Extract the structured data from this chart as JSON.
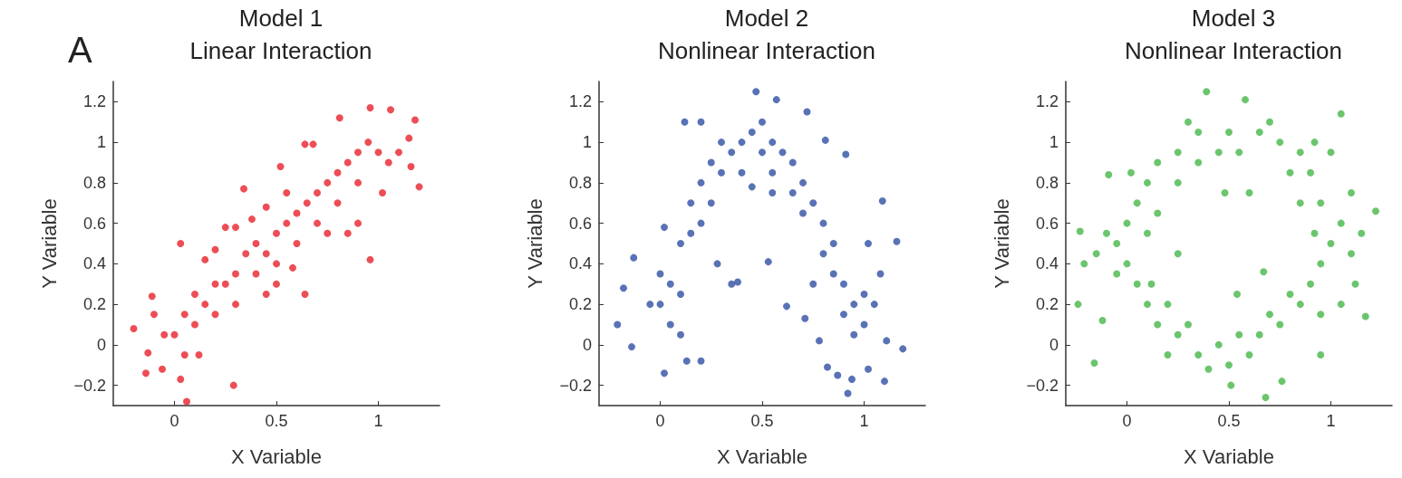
{
  "chart_data": [
    {
      "type": "scatter",
      "title": "Model 1",
      "subtitle": "Linear Interaction",
      "xlabel": "X Variable",
      "ylabel": "Y Variable",
      "annotations": [
        "A"
      ],
      "xlim": [
        -0.3,
        1.3
      ],
      "ylim": [
        -0.3,
        1.3
      ],
      "xticks": [
        0,
        0.5,
        1
      ],
      "yticks": [
        -0.2,
        0,
        0.2,
        0.4,
        0.6,
        0.8,
        1,
        1.2
      ],
      "grid": false,
      "marker": "circle",
      "series": [
        {
          "color": "#e8202a",
          "x": [
            -0.2,
            -0.14,
            -0.13,
            -0.11,
            0.03,
            0.06,
            0.29,
            0.34,
            0.52,
            0.64,
            0.96,
            1.2,
            1.18,
            1.06,
            0.96,
            0.81,
            1.15,
            1.16,
            0.64,
            0.68,
            0.03,
            -0.06,
            0,
            0.05,
            0.1,
            0.1,
            0.15,
            0.2,
            0.2,
            0.25,
            0.3,
            0.3,
            0.35,
            0.4,
            0.4,
            0.45,
            0.5,
            0.5,
            0.55,
            0.6,
            0.6,
            0.65,
            0.7,
            0.7,
            0.75,
            0.8,
            0.8,
            0.85,
            0.9,
            0.9,
            0.95,
            1,
            1.05,
            0.15,
            0.2,
            0.25,
            0.38,
            0.45,
            0.5,
            0.58,
            0.12,
            0.05,
            -0.1,
            -0.05,
            0.75,
            0.85,
            0.9,
            1.02,
            1.1,
            0.55,
            0.45,
            0.3
          ],
          "values": [
            0.08,
            -0.14,
            -0.04,
            0.24,
            0.5,
            -0.28,
            -0.2,
            0.77,
            0.88,
            0.25,
            0.42,
            0.78,
            1.11,
            1.16,
            1.17,
            1.12,
            1.02,
            0.88,
            0.99,
            0.99,
            -0.17,
            -0.12,
            0.05,
            0.15,
            0.1,
            0.25,
            0.2,
            0.3,
            0.15,
            0.3,
            0.35,
            0.2,
            0.45,
            0.5,
            0.35,
            0.45,
            0.55,
            0.4,
            0.6,
            0.65,
            0.5,
            0.7,
            0.75,
            0.6,
            0.8,
            0.85,
            0.7,
            0.9,
            0.95,
            0.8,
            1,
            0.95,
            0.9,
            0.42,
            0.47,
            0.58,
            0.62,
            0.25,
            0.3,
            0.38,
            -0.05,
            -0.05,
            0.15,
            0.05,
            0.55,
            0.55,
            0.6,
            0.75,
            0.95,
            0.75,
            0.68,
            0.58
          ]
        }
      ]
    },
    {
      "type": "scatter",
      "title": "Model 2",
      "subtitle": "Nonlinear Interaction",
      "xlabel": "X Variable",
      "ylabel": "Y Variable",
      "xlim": [
        -0.3,
        1.3
      ],
      "ylim": [
        -0.3,
        1.3
      ],
      "xticks": [
        0,
        0.5,
        1
      ],
      "yticks": [
        -0.2,
        0,
        0.2,
        0.4,
        0.6,
        0.8,
        1,
        1.2
      ],
      "grid": false,
      "marker": "circle",
      "series": [
        {
          "color": "#2f4fa2",
          "x": [
            -0.21,
            -0.18,
            -0.14,
            -0.13,
            0.02,
            0.13,
            0.2,
            0.12,
            0.2,
            0.47,
            0.57,
            0.53,
            0.62,
            0.71,
            0.82,
            0.92,
            0.87,
            0.94,
            1.1,
            1.19,
            1.16,
            1.09,
            0.91,
            0.81,
            0.72,
            1.02,
            1.11,
            0,
            0,
            0.05,
            0.05,
            0.1,
            0.1,
            0.15,
            0.15,
            0.2,
            0.2,
            0.25,
            0.25,
            0.3,
            0.3,
            0.35,
            0.4,
            0.4,
            0.45,
            0.5,
            0.5,
            0.55,
            0.55,
            0.6,
            0.65,
            0.65,
            0.7,
            0.7,
            0.75,
            0.8,
            0.8,
            0.85,
            0.85,
            0.9,
            0.9,
            0.95,
            0.95,
            1,
            1,
            1.05,
            0.1,
            -0.05,
            0.35,
            0.38,
            0.28,
            0.75,
            0.78,
            0.45,
            0.55,
            0.02,
            1.02,
            1.08
          ],
          "values": [
            0.1,
            0.28,
            -0.01,
            0.43,
            -0.14,
            -0.08,
            -0.08,
            1.1,
            1.1,
            1.25,
            1.21,
            0.41,
            0.19,
            0.13,
            -0.11,
            -0.24,
            -0.15,
            -0.17,
            -0.18,
            -0.02,
            0.51,
            0.71,
            0.94,
            1.01,
            1.15,
            -0.12,
            0.02,
            0.2,
            0.35,
            0.3,
            0.1,
            0.5,
            0.25,
            0.55,
            0.7,
            0.6,
            0.8,
            0.7,
            0.9,
            0.85,
            1,
            0.95,
            1,
            0.85,
            1.05,
            0.95,
            1.1,
            1,
            0.85,
            0.95,
            0.9,
            0.75,
            0.8,
            0.65,
            0.7,
            0.6,
            0.45,
            0.5,
            0.35,
            0.3,
            0.15,
            0.2,
            0.05,
            0.25,
            0.1,
            0.2,
            0.05,
            0.2,
            0.3,
            0.31,
            0.4,
            0.3,
            0.02,
            0.78,
            0.75,
            0.58,
            0.5,
            0.35
          ]
        }
      ]
    },
    {
      "type": "scatter",
      "title": "Model 3",
      "subtitle": "Nonlinear Interaction",
      "xlabel": "X Variable",
      "ylabel": "Y Variable",
      "xlim": [
        -0.3,
        1.3
      ],
      "ylim": [
        -0.3,
        1.3
      ],
      "xticks": [
        0,
        0.5,
        1
      ],
      "yticks": [
        -0.2,
        0,
        0.2,
        0.4,
        0.6,
        0.8,
        1,
        1.2
      ],
      "grid": false,
      "marker": "circle",
      "series": [
        {
          "color": "#45b649",
          "x": [
            -0.24,
            -0.16,
            -0.23,
            -0.12,
            -0.21,
            0.39,
            0.58,
            1.05,
            1.22,
            1.17,
            0.68,
            0.51,
            0.76,
            0.95,
            -0.09,
            0.48,
            0.6,
            0.67,
            0.54,
            0.25,
            1,
            1.05,
            0.95,
            0.9,
            0.85,
            0.75,
            0.65,
            0.55,
            0.45,
            0.35,
            0.25,
            0.15,
            0.1,
            0.05,
            0,
            -0.05,
            0,
            0.05,
            0.1,
            0.15,
            0.25,
            0.35,
            0.45,
            0.55,
            0.65,
            0.75,
            0.85,
            0.9,
            0.95,
            1.1,
            1.12,
            1.05,
            0.95,
            0.8,
            0.7,
            0.6,
            0.5,
            0.4,
            0.3,
            0.2,
            0.12,
            0.2,
            -0.1,
            -0.05,
            0.1,
            0.15,
            0.25,
            0.35,
            0.3,
            0.5,
            0.7,
            0.8,
            0.85,
            0.92,
            1.15,
            1.1,
            1,
            0.92,
            -0.15,
            0.02
          ],
          "values": [
            0.2,
            -0.09,
            0.56,
            0.12,
            0.4,
            1.25,
            1.21,
            1.14,
            0.66,
            0.14,
            -0.26,
            -0.2,
            -0.18,
            -0.05,
            0.84,
            0.75,
            0.75,
            0.36,
            0.25,
            0.45,
            0.5,
            0.6,
            0.7,
            0.85,
            0.95,
            1,
            1.05,
            0.95,
            0.95,
            1.05,
            0.95,
            0.9,
            0.8,
            0.7,
            0.6,
            0.5,
            0.4,
            0.3,
            0.2,
            0.1,
            0.05,
            -0.05,
            0,
            0.05,
            0.05,
            0.1,
            0.2,
            0.3,
            0.4,
            0.45,
            0.3,
            0.2,
            0.15,
            0.25,
            0.15,
            -0.05,
            -0.1,
            -0.12,
            0.1,
            -0.05,
            0.3,
            0.2,
            0.55,
            0.35,
            0.55,
            0.65,
            0.8,
            0.9,
            1.1,
            1.05,
            1.1,
            0.85,
            0.7,
            0.55,
            0.55,
            0.75,
            0.95,
            1,
            0.45,
            0.85
          ]
        }
      ]
    }
  ]
}
